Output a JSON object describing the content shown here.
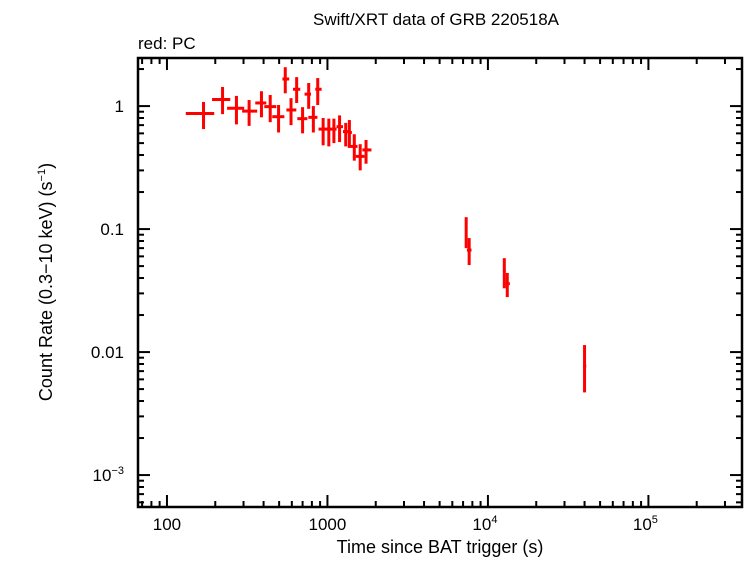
{
  "chart_data": {
    "type": "scatter",
    "title": "Swift/XRT data of GRB 220518A",
    "legend_note": "red: PC",
    "xlabel": "Time since BAT trigger (s)",
    "ylabel": "Count Rate (0.3−10 keV) (s",
    "ylabel_sup": "−1",
    "ylabel_tail": ")",
    "xscale": "log",
    "yscale": "log",
    "xlim": [
      66,
      383000
    ],
    "ylim": [
      0.00055,
      2.46
    ],
    "grid": false,
    "x_ticks": [
      {
        "value": 100,
        "label": "100",
        "sup": ""
      },
      {
        "value": 1000,
        "label": "1000",
        "sup": ""
      },
      {
        "value": 10000,
        "label": "10",
        "sup": "4"
      },
      {
        "value": 100000,
        "label": "10",
        "sup": "5"
      }
    ],
    "y_ticks": [
      {
        "value": 1,
        "label": "1",
        "sup": ""
      },
      {
        "value": 0.1,
        "label": "0.1",
        "sup": ""
      },
      {
        "value": 0.01,
        "label": "0.01",
        "sup": ""
      },
      {
        "value": 0.001,
        "label": "10",
        "sup": "−3"
      }
    ],
    "series": [
      {
        "name": "PC",
        "color": "#ff0000",
        "columns": [
          "time",
          "time_lo",
          "time_hi",
          "rate",
          "rate_lo",
          "rate_hi"
        ],
        "points": [
          [
            169,
            131,
            197,
            0.87,
            0.65,
            1.08
          ],
          [
            222,
            191,
            248,
            1.13,
            0.86,
            1.43
          ],
          [
            271,
            237,
            303,
            0.96,
            0.71,
            1.21
          ],
          [
            325,
            294,
            365,
            0.91,
            0.69,
            1.12
          ],
          [
            388,
            355,
            416,
            1.06,
            0.81,
            1.32
          ],
          [
            440,
            404,
            480,
            0.99,
            0.74,
            1.23
          ],
          [
            496,
            453,
            539,
            0.82,
            0.61,
            1.02
          ],
          [
            546,
            524,
            578,
            1.66,
            1.27,
            2.07
          ],
          [
            593,
            555,
            640,
            0.93,
            0.7,
            1.16
          ],
          [
            643,
            610,
            677,
            1.37,
            1.06,
            1.72
          ],
          [
            700,
            649,
            750,
            0.79,
            0.6,
            0.98
          ],
          [
            764,
            720,
            790,
            1.25,
            0.95,
            1.54
          ],
          [
            817,
            760,
            866,
            0.81,
            0.61,
            1.0
          ],
          [
            870,
            840,
            920,
            1.37,
            1.02,
            1.69
          ],
          [
            940,
            880,
            1000,
            0.65,
            0.48,
            0.8
          ],
          [
            1020,
            990,
            1060,
            0.65,
            0.47,
            0.79
          ],
          [
            1097,
            1060,
            1140,
            0.65,
            0.5,
            0.79
          ],
          [
            1190,
            1140,
            1250,
            0.68,
            0.51,
            0.84
          ],
          [
            1300,
            1250,
            1350,
            0.62,
            0.47,
            0.73
          ],
          [
            1370,
            1340,
            1420,
            0.61,
            0.46,
            0.77
          ],
          [
            1470,
            1340,
            1540,
            0.47,
            0.36,
            0.59
          ],
          [
            1600,
            1500,
            1700,
            0.39,
            0.3,
            0.49
          ],
          [
            1740,
            1650,
            1880,
            0.44,
            0.34,
            0.53
          ],
          [
            7320,
            7230,
            7400,
            0.096,
            0.07,
            0.125
          ],
          [
            7640,
            7400,
            7900,
            0.0675,
            0.051,
            0.0845
          ],
          [
            12650,
            12400,
            12900,
            0.0456,
            0.033,
            0.058
          ],
          [
            13200,
            12900,
            13700,
            0.036,
            0.028,
            0.044
          ],
          [
            40000,
            39200,
            41000,
            0.0077,
            0.0047,
            0.0114
          ]
        ]
      }
    ]
  }
}
